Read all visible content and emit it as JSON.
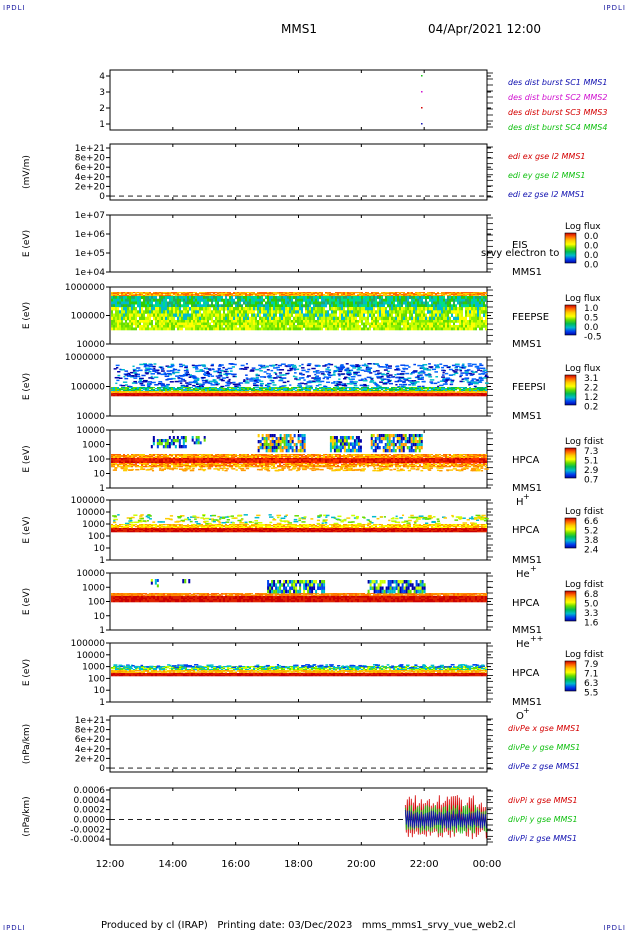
{
  "corners": {
    "tl": "IPDLI",
    "tr": "IPDLI",
    "bl": "IPDLI",
    "br": "IPDLI"
  },
  "header": {
    "spacecraft": "MMS1",
    "datetime": "04/Apr/2021 12:00"
  },
  "footer": {
    "produced": "Produced by cl (IRAP)",
    "printed": "Printing date: 03/Dec/2023",
    "file": "mms_mms1_srvy_vue_web2.cl"
  },
  "time_axis": {
    "labels": [
      "12:00",
      "14:00",
      "16:00",
      "18:00",
      "20:00",
      "22:00",
      "00:00"
    ]
  },
  "colors": {
    "red": "#d40000",
    "green": "#10c010",
    "blue": "#1010b0",
    "magenta": "#d010d0",
    "dashed": "#000000"
  },
  "chart_data": [
    {
      "type": "scatter",
      "id": "burst",
      "yticks": [
        "4",
        "3",
        "2",
        "1"
      ],
      "legend": [
        {
          "label": "des dist burst SC1 MMS1",
          "color": "#1010b0"
        },
        {
          "label": "des dist burst SC2 MMS2",
          "color": "#d010d0"
        },
        {
          "label": "des dist burst SC3 MMS3",
          "color": "#d40000"
        },
        {
          "label": "des dist burst SC4 MMS4",
          "color": "#10c010"
        }
      ],
      "series": [
        {
          "name": "des dist burst SC4 MMS4",
          "x": [
            21.9
          ],
          "y": [
            4
          ]
        },
        {
          "name": "des dist burst SC2 MMS2",
          "x": [
            21.9
          ],
          "y": [
            3
          ]
        },
        {
          "name": "des dist burst SC3 MMS3",
          "x": [
            21.9
          ],
          "y": [
            2
          ]
        },
        {
          "name": "des dist burst SC1 MMS1",
          "x": [
            21.9
          ],
          "y": [
            1
          ]
        }
      ]
    },
    {
      "type": "line",
      "id": "edi",
      "ylabel": "(mV/m)",
      "yticks": [
        "1e+21",
        "8e+20",
        "6e+20",
        "4e+20",
        "2e+20",
        "0"
      ],
      "legend": [
        {
          "label": "edi ex gse l2 MMS1",
          "color": "#d40000"
        },
        {
          "label": "edi ey gse l2 MMS1",
          "color": "#10c010"
        },
        {
          "label": "edi ez gse l2 MMS1",
          "color": "#1010b0"
        }
      ]
    },
    {
      "type": "heatmap",
      "id": "eis",
      "ylabel": "E (eV)",
      "yticks": [
        "1e+07",
        "1e+06",
        "1e+05",
        "1e+04"
      ],
      "labels": [
        "EIS",
        "MMS1"
      ],
      "overflow_text": "srvy electron to",
      "colorbar": {
        "title": "Log flux",
        "ticks": [
          "0.0",
          "0.0",
          "0.0",
          "0.0"
        ]
      }
    },
    {
      "type": "heatmap",
      "id": "feepse",
      "ylabel": "E (eV)",
      "yticks": [
        "1000000",
        "100000",
        "10000"
      ],
      "labels": [
        "FEEPSE",
        "MMS1"
      ],
      "colorbar": {
        "title": "Log flux",
        "ticks": [
          "1.0",
          "0.5",
          "0.0",
          "-0.5"
        ]
      }
    },
    {
      "type": "heatmap",
      "id": "feepsi",
      "ylabel": "E (eV)",
      "yticks": [
        "1000000",
        "100000",
        "10000"
      ],
      "labels": [
        "FEEPSI",
        "MMS1"
      ],
      "colorbar": {
        "title": "Log flux",
        "ticks": [
          "3.1",
          "2.2",
          "1.2",
          "0.2"
        ]
      }
    },
    {
      "type": "heatmap",
      "id": "hpca_h",
      "ylabel": "E (eV)",
      "yticks": [
        "10000",
        "1000",
        "100",
        "10",
        "1"
      ],
      "labels": [
        "HPCA",
        "MMS1"
      ],
      "species": "H",
      "charge": "+",
      "colorbar": {
        "title": "Log fdist",
        "ticks": [
          "7.3",
          "5.1",
          "2.9",
          "0.7"
        ]
      }
    },
    {
      "type": "heatmap",
      "id": "hpca_he",
      "ylabel": "E (eV)",
      "yticks": [
        "100000",
        "10000",
        "1000",
        "100",
        "10",
        "1"
      ],
      "labels": [
        "HPCA",
        "MMS1"
      ],
      "species": "He",
      "charge": "+",
      "colorbar": {
        "title": "Log fdist",
        "ticks": [
          "6.6",
          "5.2",
          "3.8",
          "2.4"
        ]
      }
    },
    {
      "type": "heatmap",
      "id": "hpca_hepp",
      "ylabel": "E (eV)",
      "yticks": [
        "10000",
        "1000",
        "100",
        "10",
        "1"
      ],
      "labels": [
        "HPCA",
        "MMS1"
      ],
      "species": "He",
      "charge": "++",
      "colorbar": {
        "title": "Log fdist",
        "ticks": [
          "6.8",
          "5.0",
          "3.3",
          "1.6"
        ]
      }
    },
    {
      "type": "heatmap",
      "id": "hpca_o",
      "ylabel": "E (eV)",
      "yticks": [
        "100000",
        "10000",
        "1000",
        "100",
        "10",
        "1"
      ],
      "labels": [
        "HPCA",
        "MMS1"
      ],
      "species": "O",
      "charge": "+",
      "colorbar": {
        "title": "Log fdist",
        "ticks": [
          "7.9",
          "7.1",
          "6.3",
          "5.5"
        ]
      }
    },
    {
      "type": "line",
      "id": "divpe",
      "ylabel": "(nPa/km)",
      "yticks": [
        "1e+21",
        "8e+20",
        "6e+20",
        "4e+20",
        "2e+20",
        "0"
      ],
      "legend": [
        {
          "label": "divPe x gse MMS1",
          "color": "#d40000"
        },
        {
          "label": "divPe y gse MMS1",
          "color": "#10c010"
        },
        {
          "label": "divPe z gse MMS1",
          "color": "#1010b0"
        }
      ]
    },
    {
      "type": "line",
      "id": "divpi",
      "ylabel": "(nPa/km)",
      "yticks": [
        "0.0006",
        "0.0004",
        "0.0002",
        "0.0000",
        "-0.0002",
        "-0.0004"
      ],
      "ytick_values": [
        0.0006,
        0.0004,
        0.0002,
        0.0,
        -0.0002,
        -0.0004
      ],
      "ylim": [
        -0.00052,
        0.00064
      ],
      "legend": [
        {
          "label": "divPi x gse MMS1",
          "color": "#d40000"
        },
        {
          "label": "divPi y gse MMS1",
          "color": "#10c010"
        },
        {
          "label": "divPi z gse MMS1",
          "color": "#1010b0"
        }
      ],
      "series": [
        {
          "name": "divPi x gse MMS1",
          "x": [
            21.4,
            24.0
          ],
          "y": [
            -0.0004,
            0.0005
          ]
        },
        {
          "name": "divPi y gse MMS1",
          "x": [
            21.4,
            24.0
          ],
          "y": [
            -0.0003,
            0.0003
          ]
        },
        {
          "name": "divPi z gse MMS1",
          "x": [
            21.4,
            24.0
          ],
          "y": [
            -0.0002,
            0.0002
          ]
        }
      ]
    }
  ]
}
